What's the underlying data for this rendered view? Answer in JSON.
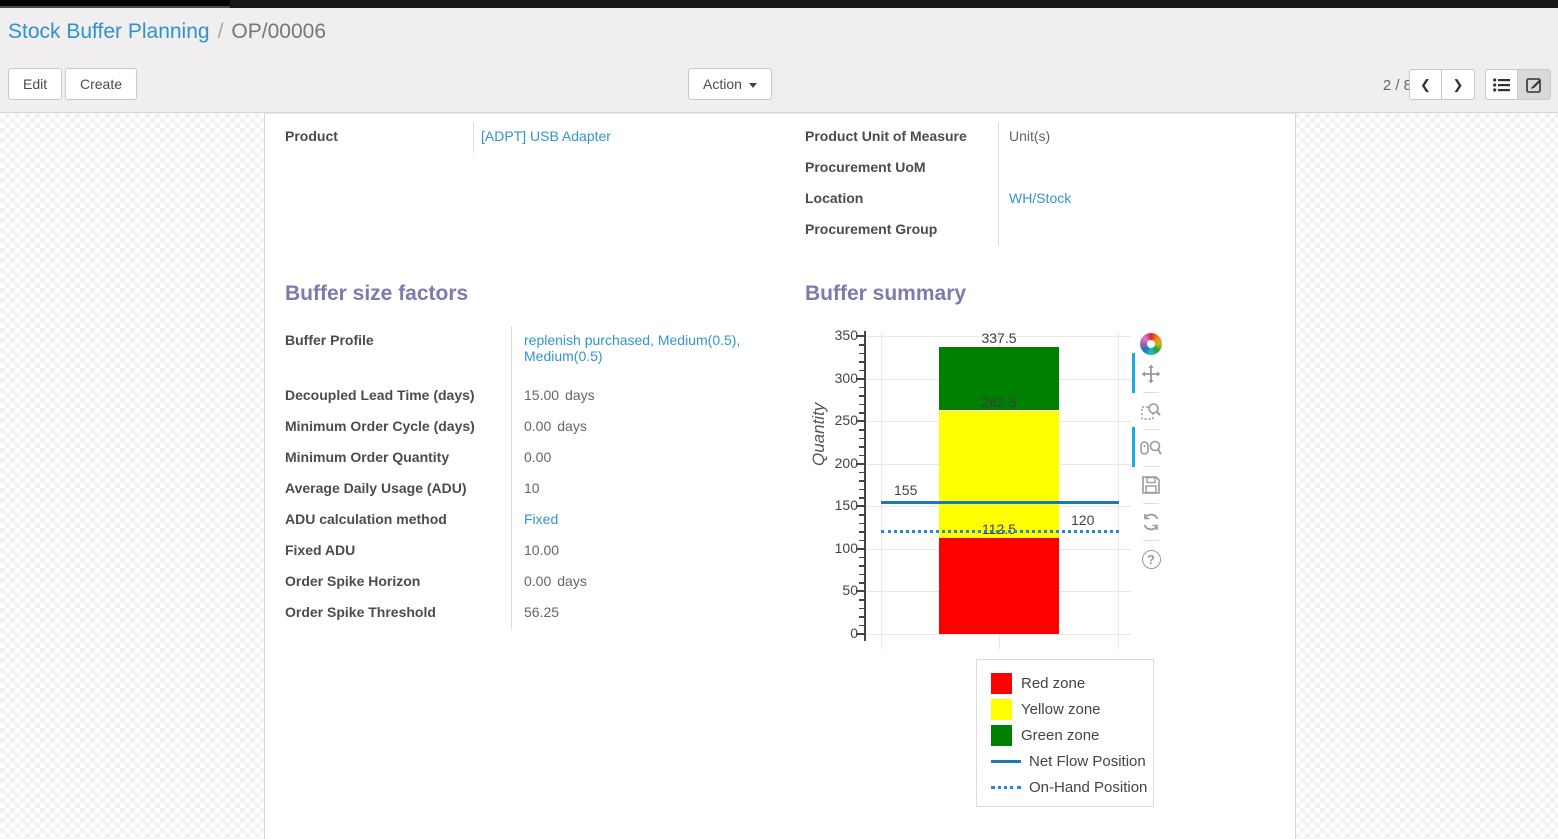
{
  "breadcrumb": {
    "parent": "Stock Buffer Planning",
    "separator": "/",
    "current": "OP/00006"
  },
  "control_panel": {
    "edit_label": "Edit",
    "create_label": "Create",
    "action_label": "Action",
    "pager_value": "2 / 8"
  },
  "sheet": {
    "product_group": {
      "rows": [
        {
          "label": "Product",
          "value": "[ADPT] USB Adapter"
        }
      ]
    },
    "details_group": {
      "rows": [
        {
          "label": "Product Unit of Measure",
          "value": "Unit(s)"
        },
        {
          "label": "Procurement UoM",
          "value": ""
        },
        {
          "label": "Location",
          "value": "WH/Stock"
        },
        {
          "label": "Procurement Group",
          "value": ""
        }
      ]
    },
    "factors": {
      "title": "Buffer size factors",
      "rows": [
        {
          "label": "Buffer Profile",
          "value": "replenish purchased, Medium(0.5), Medium(0.5)",
          "unit": ""
        },
        {
          "label": "Decoupled Lead Time (days)",
          "value": "15.00",
          "unit": "days"
        },
        {
          "label": "Minimum Order Cycle (days)",
          "value": "0.00",
          "unit": "days"
        },
        {
          "label": "Minimum Order Quantity",
          "value": "0.00",
          "unit": ""
        },
        {
          "label": "Average Daily Usage (ADU)",
          "value": "10",
          "unit": ""
        },
        {
          "label": "ADU calculation method",
          "value": "Fixed",
          "unit": ""
        },
        {
          "label": "Fixed ADU",
          "value": "10.00",
          "unit": ""
        },
        {
          "label": "Order Spike Horizon",
          "value": "0.00",
          "unit": "days"
        },
        {
          "label": "Order Spike Threshold",
          "value": "56.25",
          "unit": ""
        }
      ]
    },
    "summary": {
      "title": "Buffer summary"
    }
  },
  "chart_data": {
    "type": "bar",
    "title": "",
    "xlabel": "",
    "ylabel": "Quantity",
    "ylim": [
      0,
      350
    ],
    "yticks": [
      0,
      50,
      100,
      150,
      200,
      250,
      300,
      350
    ],
    "minor_tick_step": 10,
    "grid": true,
    "categories": [
      ""
    ],
    "series": [
      {
        "name": "Red zone",
        "color": "#ff0000",
        "values": [
          112.5
        ]
      },
      {
        "name": "Yellow zone",
        "color": "#ffff00",
        "values": [
          150
        ]
      },
      {
        "name": "Green zone",
        "color": "#008000",
        "values": [
          75
        ]
      }
    ],
    "stack_labels": [
      {
        "text": "112.5",
        "value": 112.5
      },
      {
        "text": "262.5",
        "value": 262.5
      },
      {
        "text": "337.5",
        "value": 337.5
      }
    ],
    "lines": [
      {
        "name": "Net Flow Position",
        "label": "155",
        "value": 155,
        "style": "solid",
        "color": "#1f77b4"
      },
      {
        "name": "On-Hand Position",
        "label": "120",
        "value": 120,
        "style": "dotted",
        "color": "#2e86d1"
      }
    ],
    "legend_position": "bottom-right"
  }
}
